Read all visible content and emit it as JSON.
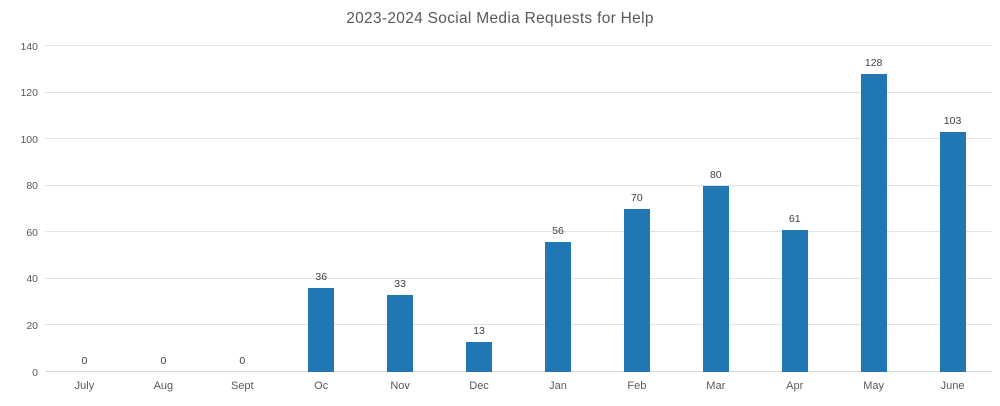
{
  "chart_data": {
    "type": "bar",
    "title": "2023-2024 Social Media Requests for Help",
    "categories": [
      "July",
      "Aug",
      "Sept",
      "Oc",
      "Nov",
      "Dec",
      "Jan",
      "Feb",
      "Mar",
      "Apr",
      "May",
      "June"
    ],
    "values": [
      0,
      0,
      0,
      36,
      33,
      13,
      56,
      70,
      80,
      61,
      128,
      103
    ],
    "xlabel": "",
    "ylabel": "",
    "ylim": [
      0,
      140
    ],
    "ytick_step": 20,
    "grid": true,
    "legend": "none",
    "bar_color": "#2077B4",
    "gridline_color": "#e2e2e2",
    "title_color": "#595959",
    "tick_label_color": "#595959",
    "value_label_color": "#404040",
    "background_color": "#ffffff"
  }
}
